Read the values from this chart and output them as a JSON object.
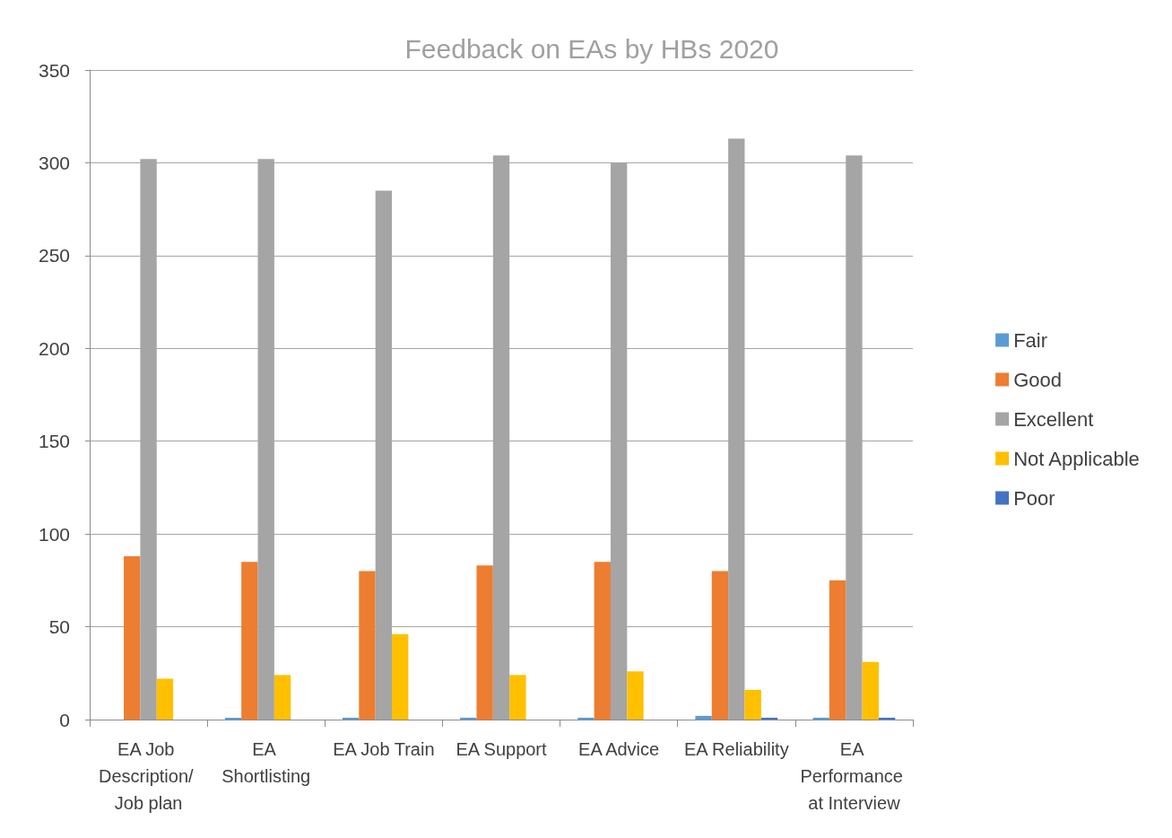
{
  "chart_data": {
    "type": "bar",
    "title": "Feedback on EAs by HBs 2020",
    "categories": [
      "EA Job Description/ Job plan",
      "EA Shortlisting",
      "EA Job Train",
      "EA Support",
      "EA Advice",
      "EA Reliability",
      "EA Performance at Interview"
    ],
    "series": [
      {
        "name": "Fair",
        "color": "#5b9bd5",
        "values": [
          0,
          1,
          1,
          1,
          1,
          2,
          1
        ]
      },
      {
        "name": "Good",
        "color": "#ed7d31",
        "values": [
          88,
          85,
          80,
          83,
          85,
          80,
          75
        ]
      },
      {
        "name": "Excellent",
        "color": "#a5a5a5",
        "values": [
          302,
          302,
          285,
          304,
          300,
          313,
          304
        ]
      },
      {
        "name": "Not Applicable",
        "color": "#ffc000",
        "values": [
          22,
          24,
          46,
          24,
          26,
          16,
          31
        ]
      },
      {
        "name": "Poor",
        "color": "#4472c4",
        "values": [
          0,
          0,
          0,
          0,
          0,
          1,
          1
        ]
      }
    ],
    "ylim": [
      0,
      350
    ],
    "yticks": [
      0,
      50,
      100,
      150,
      200,
      250,
      300,
      350
    ],
    "grid": "y",
    "legend": "right"
  }
}
